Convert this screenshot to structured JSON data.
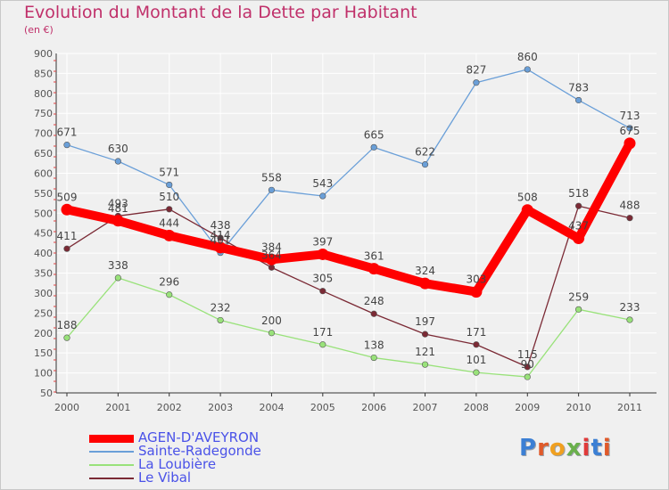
{
  "title": "Evolution du Montant de la Dette par Habitant",
  "subtitle": "(en €)",
  "logo_text": "Proxiti",
  "chart_data": {
    "type": "line",
    "title": "Evolution du Montant de la Dette par Habitant",
    "subtitle": "(en €)",
    "xlabel": "",
    "ylabel": "",
    "x": [
      "2000",
      "2001",
      "2002",
      "2003",
      "2004",
      "2005",
      "2006",
      "2007",
      "2008",
      "2009",
      "2010",
      "2011"
    ],
    "ylim": [
      50,
      900
    ],
    "yticks": [
      50,
      100,
      150,
      200,
      250,
      300,
      350,
      400,
      450,
      500,
      550,
      600,
      650,
      700,
      750,
      800,
      850,
      900
    ],
    "grid": true,
    "legend_position": "bottom-left",
    "series": [
      {
        "name": "AGEN-D'AVEYRON",
        "color": "#ff0000",
        "values": [
          509,
          481,
          444,
          414,
          384,
          397,
          361,
          324,
          303,
          508,
          437,
          675
        ]
      },
      {
        "name": "Sainte-Radegonde",
        "color": "#6a9fd8",
        "values": [
          671,
          630,
          571,
          401,
          558,
          543,
          665,
          622,
          827,
          860,
          783,
          713
        ]
      },
      {
        "name": "La Loubière",
        "color": "#99e27a",
        "values": [
          188,
          338,
          296,
          232,
          200,
          171,
          138,
          121,
          101,
          90,
          259,
          233
        ]
      },
      {
        "name": "Le Vibal",
        "color": "#7b2a35",
        "values": [
          411,
          493,
          510,
          438,
          364,
          305,
          248,
          197,
          171,
          115,
          518,
          488
        ]
      }
    ]
  }
}
